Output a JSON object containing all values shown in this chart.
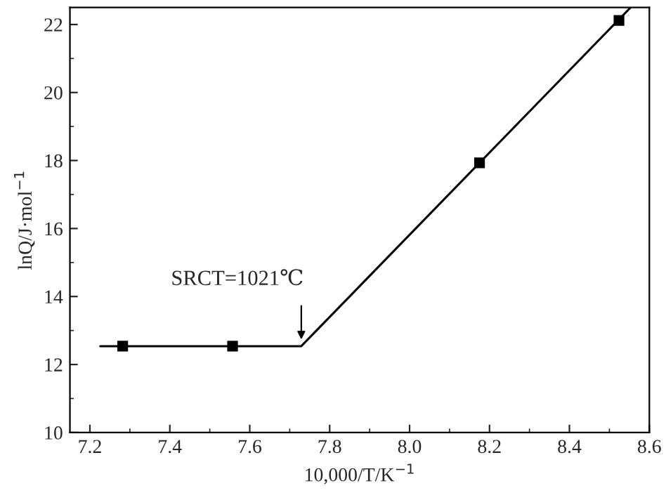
{
  "chart_data": {
    "type": "scatter",
    "xlabel": "10,000/T/K$^{−1}$",
    "ylabel": "lnQ/J·mol$^{−1}$",
    "xlim": [
      7.15,
      8.6
    ],
    "ylim": [
      10,
      22.5
    ],
    "xticks": [
      7.2,
      7.4,
      7.6,
      7.8,
      {
        "value": 8,
        "label": "8.0"
      },
      8.2,
      8.4,
      8.6
    ],
    "yticks": [
      10,
      12,
      14,
      16,
      18,
      20,
      22
    ],
    "grid": false,
    "series": [
      {
        "marker": "square",
        "color": "#000000",
        "x": [
          7.282,
          7.557,
          8.175,
          8.524
        ],
        "values": [
          12.54,
          12.54,
          17.93,
          22.12
        ]
      },
      {
        "type": "line",
        "marker": "none",
        "line_style": "solid",
        "color": "#000000",
        "x": [
          7.226,
          7.729,
          8.553
        ],
        "values": [
          12.54,
          12.54,
          22.5
        ]
      }
    ],
    "annotations": [
      {
        "text": "SRCT=1021℃",
        "x": 7.729,
        "y": 12.54
      }
    ]
  }
}
